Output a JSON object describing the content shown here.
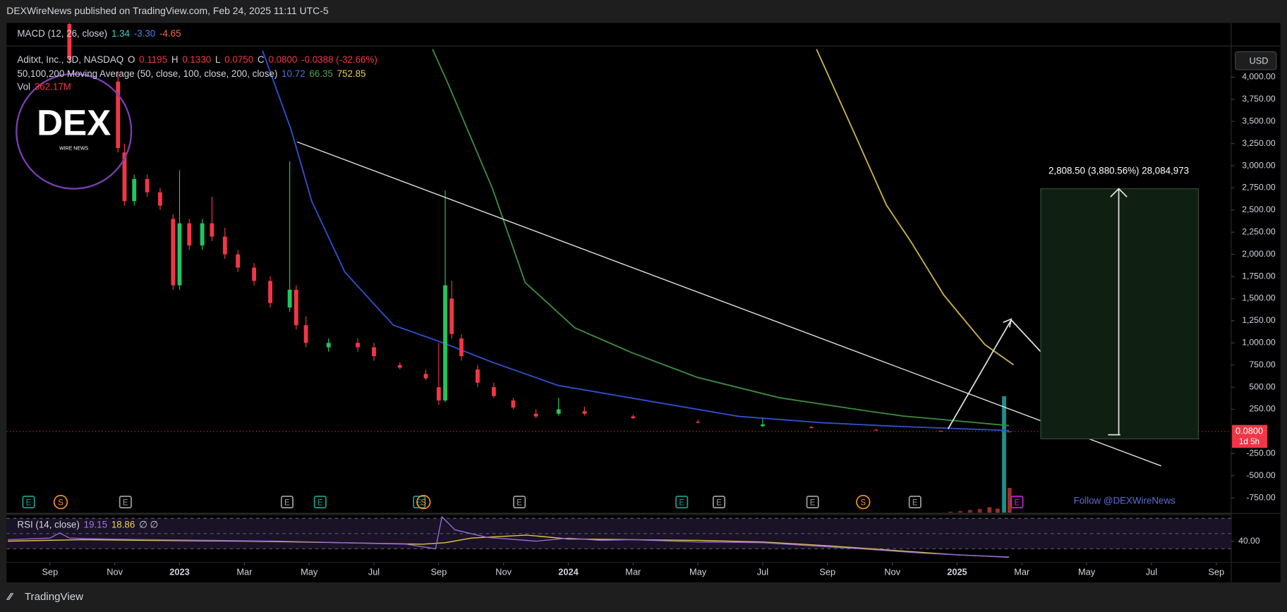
{
  "header": {
    "publisher": "DEXWireNews published on TradingView.com, Feb 24, 2025 11:11 UTC-5"
  },
  "legend": {
    "macd": {
      "title": "MACD (12, 26, close)",
      "values": [
        "1.34",
        "-3.30",
        "-4.65"
      ]
    },
    "symbol": {
      "title": "Aditxt, Inc., 3D, NASDAQ",
      "fields": [
        "O",
        "H",
        "L",
        "C"
      ],
      "values": [
        "0.1195",
        "0.1330",
        "0.0750",
        "0.0800"
      ],
      "change": "-0.0388 (-32.66%)"
    },
    "ma": {
      "title": "50,100,200 Moving Average (50, close, 100, close, 200, close)",
      "values": [
        "10.72",
        "66.35",
        "752.85"
      ]
    },
    "vol": {
      "title": "Vol",
      "value": "362.17M"
    },
    "rsi": {
      "title": "RSI (14, close)",
      "values": [
        "19.15",
        "18.86"
      ],
      "extra": "∅ ∅"
    }
  },
  "logo": {
    "title": "DEX",
    "subtitle": "WIRE NEWS"
  },
  "currency": "USD",
  "price_label": {
    "value": "0.0800",
    "countdown": "1d 5h"
  },
  "measure": {
    "label": "2,808.50 (3,880.56%) 28,084,973"
  },
  "follow": "Follow @DEXWireNews",
  "footer": {
    "brand": "TradingView"
  },
  "chart_data": {
    "type": "candlestick",
    "up_color": "#22c55e",
    "down_color": "#f23645",
    "xlim": [
      -1.34,
      36.46
    ],
    "xticks": [
      {
        "value": 0,
        "label": "Sep"
      },
      {
        "value": 2,
        "label": "Nov"
      },
      {
        "value": 4,
        "label": "2023"
      },
      {
        "value": 6,
        "label": "Mar"
      },
      {
        "value": 8,
        "label": "May"
      },
      {
        "value": 10,
        "label": "Jul"
      },
      {
        "value": 12,
        "label": "Sep"
      },
      {
        "value": 14,
        "label": "Nov"
      },
      {
        "value": 16,
        "label": "2024"
      },
      {
        "value": 18,
        "label": "Mar"
      },
      {
        "value": 20,
        "label": "May"
      },
      {
        "value": 22,
        "label": "Jul"
      },
      {
        "value": 24,
        "label": "Sep"
      },
      {
        "value": 26,
        "label": "Nov"
      },
      {
        "value": 28,
        "label": "2025"
      },
      {
        "value": 30,
        "label": "Mar"
      },
      {
        "value": 32,
        "label": "May"
      },
      {
        "value": 34,
        "label": "Jul"
      },
      {
        "value": 36,
        "label": "Sep"
      }
    ],
    "ylim": [
      -917,
      4611
    ],
    "yticks": [
      {
        "value": -750,
        "label": "-750.00"
      },
      {
        "value": -500,
        "label": "-500.00"
      },
      {
        "value": -250,
        "label": "-250.00"
      },
      {
        "value": 250,
        "label": "250.00"
      },
      {
        "value": 500,
        "label": "500.00"
      },
      {
        "value": 750,
        "label": "750.00"
      },
      {
        "value": 1000,
        "label": "1,000.00"
      },
      {
        "value": 1250,
        "label": "1,250.00"
      },
      {
        "value": 1500,
        "label": "1,500.00"
      },
      {
        "value": 1750,
        "label": "1,750.00"
      },
      {
        "value": 2000,
        "label": "2,000.00"
      },
      {
        "value": 2250,
        "label": "2,250.00"
      },
      {
        "value": 2500,
        "label": "2,500.00"
      },
      {
        "value": 2750,
        "label": "2,750.00"
      },
      {
        "value": 3000,
        "label": "3,000.00"
      },
      {
        "value": 3250,
        "label": "3,250.00"
      },
      {
        "value": 3500,
        "label": "3,500.00"
      },
      {
        "value": 3750,
        "label": "3,750.00"
      },
      {
        "value": 4000,
        "label": "4,000.00"
      }
    ],
    "x": [
      0.6,
      2.1,
      2.3,
      2.6,
      3.0,
      3.4,
      3.8,
      4.0,
      4.3,
      4.7,
      5.0,
      5.4,
      5.8,
      6.3,
      6.8,
      7.4,
      7.6,
      7.9,
      8.6,
      9.5,
      10.0,
      10.8,
      11.6,
      12.0,
      12.2,
      12.4,
      12.7,
      13.2,
      13.7,
      14.3,
      15.0,
      15.7,
      16.5,
      18.0,
      20.0,
      22.0,
      23.5,
      25.5,
      27.5,
      29.6
    ],
    "open": [
      4600,
      3950,
      3150,
      2600,
      2850,
      2700,
      2400,
      1650,
      2350,
      2100,
      2350,
      2200,
      2000,
      1850,
      1700,
      1400,
      1600,
      1200,
      950,
      1000,
      950,
      750,
      650,
      500,
      350,
      1500,
      1050,
      700,
      500,
      350,
      200,
      200,
      230,
      170,
      110,
      60,
      50,
      20,
      8,
      0.1195
    ],
    "high": [
      4611,
      4050,
      3250,
      2900,
      2900,
      2750,
      2450,
      2950,
      2400,
      2400,
      2650,
      2300,
      2050,
      1900,
      1750,
      3050,
      1650,
      1300,
      1050,
      1050,
      1000,
      780,
      700,
      1000,
      2720,
      1700,
      1100,
      750,
      550,
      380,
      250,
      380,
      280,
      190,
      130,
      150,
      60,
      25,
      10,
      0.133
    ],
    "low": [
      4150,
      3150,
      2550,
      2550,
      2650,
      2500,
      1600,
      1600,
      2050,
      2050,
      2150,
      1950,
      1800,
      1650,
      1400,
      1350,
      1150,
      950,
      900,
      900,
      800,
      700,
      580,
      300,
      330,
      1050,
      800,
      500,
      380,
      250,
      150,
      180,
      180,
      140,
      90,
      50,
      35,
      10,
      4,
      0.075
    ],
    "close": [
      4200,
      3200,
      2600,
      2850,
      2700,
      2550,
      1650,
      2350,
      2100,
      2350,
      2200,
      2000,
      1850,
      1700,
      1450,
      1600,
      1200,
      1000,
      1000,
      950,
      850,
      720,
      600,
      350,
      1650,
      1100,
      850,
      550,
      400,
      270,
      170,
      250,
      200,
      150,
      100,
      80,
      40,
      15,
      5,
      0.08
    ],
    "moving_averages": [
      {
        "color": "#2f4fcf",
        "x": [
          6.56,
          7.45,
          8.08,
          9.1,
          10.6,
          12.14,
          13.66,
          15.68,
          18.7,
          21.26,
          23.79,
          26.3,
          29.6
        ],
        "values": [
          4300,
          3400,
          2600,
          1800,
          1200,
          1000,
          780,
          520,
          330,
          170,
          100,
          55,
          10.72
        ]
      },
      {
        "color": "#3e8a3e",
        "x": [
          11.81,
          12.26,
          13.66,
          14.67,
          16.2,
          17.96,
          19.99,
          22.52,
          25.06,
          26.32,
          29.6
        ],
        "values": [
          4315,
          3950,
          2740,
          1680,
          1170,
          890,
          610,
          380,
          240,
          175,
          66.35
        ]
      },
      {
        "color": "#c9b04a",
        "x": [
          23.66,
          24.8,
          25.82,
          26.58,
          27.59,
          28.86,
          29.74
        ],
        "values": [
          4315,
          3390,
          2555,
          2140,
          1540,
          980,
          752.85
        ]
      }
    ],
    "trendline": {
      "color": "#e0e0e0",
      "x": [
        7.63,
        34.3
      ],
      "values": [
        3269,
        -389
      ]
    },
    "volume": {
      "x": [
        27.8,
        28.1,
        28.4,
        28.7,
        29.0,
        29.25,
        29.45,
        29.62
      ],
      "values": [
        15,
        25,
        40,
        55,
        80,
        60,
        1700,
        362.17
      ],
      "colors": [
        "#7a2a2a",
        "#7a2a2a",
        "#8a2c2c",
        "#8a2c2c",
        "#9a2e2e",
        "#9a2e2e",
        "#1f8f88",
        "#9a2e2e"
      ]
    },
    "events": [
      {
        "label": "E",
        "x": -0.66,
        "color": "#1a9e8c"
      },
      {
        "label": "S",
        "x": 0.33,
        "color": "#f28c28"
      },
      {
        "label": "E",
        "x": 2.33,
        "color": "#9e9e9e"
      },
      {
        "label": "E",
        "x": 7.32,
        "color": "#9e9e9e"
      },
      {
        "label": "E",
        "x": 8.34,
        "color": "#1a9e8c"
      },
      {
        "label": "E",
        "x": 11.4,
        "color": "#1a9e8c"
      },
      {
        "label": "S",
        "x": 11.53,
        "color": "#f28c28"
      },
      {
        "label": "E",
        "x": 14.49,
        "color": "#9e9e9e"
      },
      {
        "label": "E",
        "x": 19.5,
        "color": "#1a9e8c"
      },
      {
        "label": "E",
        "x": 20.65,
        "color": "#9e9e9e"
      },
      {
        "label": "E",
        "x": 23.54,
        "color": "#9e9e9e"
      },
      {
        "label": "S",
        "x": 25.1,
        "color": "#f28c28"
      },
      {
        "label": "E",
        "x": 26.7,
        "color": "#9e9e9e"
      },
      {
        "label": "E",
        "x": 29.85,
        "color": "#c026d3"
      }
    ],
    "rsi": {
      "ylim": [
        12.7,
        74.3
      ],
      "bands": [
        70,
        50,
        30
      ],
      "yticks": [
        {
          "value": 40,
          "label": "40.00"
        }
      ],
      "x": [
        -1.3,
        0,
        0.3,
        0.6,
        1.5,
        3,
        5,
        7,
        9,
        11,
        11.9,
        12.1,
        12.5,
        13.5,
        15,
        16,
        17,
        18,
        20,
        22,
        23.5,
        25,
        27,
        28.5,
        29.6
      ],
      "values": [
        42,
        44,
        51,
        44,
        43,
        42,
        41,
        40,
        38,
        36,
        30,
        72,
        55,
        45,
        40,
        44,
        41,
        42,
        39,
        38,
        34,
        30,
        24,
        21,
        19.15
      ],
      "ma_x": [
        -1.3,
        1,
        3,
        6,
        9,
        11.5,
        12.2,
        13,
        14.7,
        16,
        18,
        20,
        22,
        24,
        26,
        28,
        29.6
      ],
      "ma_values": [
        40,
        42,
        41,
        40,
        38,
        36,
        38,
        44,
        48,
        43,
        42,
        41,
        39,
        34,
        28,
        22,
        18.86
      ],
      "color": "#8e6bd6",
      "ma_color": "#e7c33f"
    }
  }
}
